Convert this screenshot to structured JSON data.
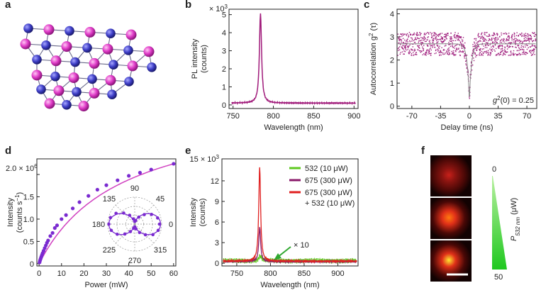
{
  "panels": {
    "a": {
      "label": "a"
    },
    "b": {
      "label": "b"
    },
    "c": {
      "label": "c"
    },
    "d": {
      "label": "d"
    },
    "e": {
      "label": "e"
    },
    "f": {
      "label": "f"
    }
  },
  "colors": {
    "magenta": "#b8238a",
    "purple": "#7b2cc9",
    "blue": "#3b3bb0",
    "pink": "#e040c8",
    "green": "#5ec91f",
    "red": "#e02020",
    "darkred": "#8a1a4a"
  },
  "panel_a": {
    "atoms_caption": ""
  },
  "panel_f": {
    "scale_label": "P",
    "scale_sub": "532 nm",
    "scale_unit": " (μW)",
    "scale_top": "0",
    "scale_bottom": "50",
    "intensities": [
      0.35,
      0.7,
      1.0
    ]
  },
  "chart_data": [
    {
      "id": "b",
      "type": "line",
      "title": "",
      "xlabel": "Wavelength (nm)",
      "ylabel": "PL intensity (counts)",
      "y_multiplier": "× 10",
      "y_multiplier_exp": "3",
      "xlim": [
        745,
        905
      ],
      "ylim": [
        -0.2,
        5.3
      ],
      "xticks": [
        750,
        800,
        850,
        900
      ],
      "yticks": [
        0,
        1,
        2,
        3,
        4,
        5
      ],
      "peak": {
        "x": 784,
        "y": 5.0,
        "width": 3.2,
        "baseline": 0.1
      }
    },
    {
      "id": "c",
      "type": "scatter",
      "title": "",
      "xlabel": "Delay time (ns)",
      "ylabel": "Autocorrelation g",
      "ylabel_sup": "2",
      "ylabel_tail": " (τ)",
      "annotation": "g",
      "annotation_sup": "2",
      "annotation_tail": "(0) = 0.25",
      "xlim": [
        -88,
        82
      ],
      "ylim": [
        -0.1,
        4.2
      ],
      "xticks": [
        -70,
        -35,
        0,
        35,
        70
      ],
      "yticks": [
        0,
        1,
        2,
        3,
        4
      ],
      "baseline": 2.7,
      "dip_min": 0.25
    },
    {
      "id": "d",
      "type": "scatter",
      "title": "",
      "xlabel": "Power (mW)",
      "ylabel": "Intensity",
      "ylabel2": "(counts s",
      "ylabel2_sup": "−1",
      "ylabel2_tail": ")",
      "y_multiplier": "× 10",
      "y_multiplier_exp": "6",
      "xlim": [
        -1,
        61
      ],
      "ylim": [
        -0.05,
        2.35
      ],
      "xticks": [
        0,
        10,
        20,
        30,
        40,
        50,
        60
      ],
      "yticks": [
        0,
        0.5,
        1.0,
        1.5,
        2.0
      ],
      "ytick_labels": [
        "0",
        "0.5",
        "1.0",
        "1.5",
        "2.0"
      ],
      "x": [
        0.2,
        0.4,
        0.6,
        0.8,
        1.0,
        1.3,
        1.6,
        2.0,
        2.5,
        3.0,
        3.5,
        4.0,
        5.0,
        6.0,
        7.0,
        8.0,
        10,
        12,
        15,
        18,
        22,
        26,
        30,
        35,
        40,
        45,
        50,
        60
      ],
      "values": [
        0.03,
        0.07,
        0.1,
        0.13,
        0.16,
        0.2,
        0.24,
        0.29,
        0.35,
        0.41,
        0.47,
        0.52,
        0.62,
        0.69,
        0.8,
        0.86,
        1.0,
        1.09,
        1.24,
        1.38,
        1.52,
        1.66,
        1.76,
        1.87,
        1.97,
        2.04,
        2.11,
        2.24
      ],
      "polar_inset": {
        "angle_labels": [
          "0",
          "45",
          "90",
          "135",
          "180",
          "225",
          "270",
          "315"
        ],
        "angles_deg": [
          0,
          15,
          30,
          45,
          60,
          75,
          90,
          105,
          120,
          135,
          150,
          165,
          180,
          195,
          210,
          225,
          240,
          255,
          270,
          285,
          300,
          315,
          330,
          345
        ],
        "r": [
          0.92,
          0.88,
          0.72,
          0.5,
          0.3,
          0.14,
          0.1,
          0.2,
          0.38,
          0.58,
          0.8,
          0.93,
          0.96,
          0.9,
          0.75,
          0.52,
          0.32,
          0.16,
          0.1,
          0.18,
          0.36,
          0.56,
          0.78,
          0.9
        ]
      }
    },
    {
      "id": "e",
      "type": "line",
      "title": "",
      "xlabel": "Wavelength (nm)",
      "ylabel": "Intensity",
      "ylabel2": "(counts)",
      "y_multiplier": "15 × 10",
      "y_multiplier_exp": "3",
      "xlim": [
        728,
        930
      ],
      "ylim": [
        -0.4,
        15.2
      ],
      "xticks": [
        750,
        800,
        850,
        900
      ],
      "yticks": [
        0,
        3,
        6,
        9,
        12
      ],
      "annotation": "× 10",
      "series": [
        {
          "name": "532 (10 μW)",
          "color": "#5ec91f",
          "peak": 0.7,
          "center": 785,
          "width": 5.0,
          "baseline": 0.35
        },
        {
          "name": "675 (300 μW)",
          "color": "#8a1a6a",
          "peak": 5.0,
          "center": 784,
          "width": 3.3,
          "baseline": 0.25
        },
        {
          "name": "675 (300 μW)",
          "name2": "+ 532 (10 μW)",
          "color": "#e02020",
          "peak": 13.8,
          "center": 784,
          "width": 3.3,
          "baseline": 0.3
        }
      ]
    }
  ]
}
